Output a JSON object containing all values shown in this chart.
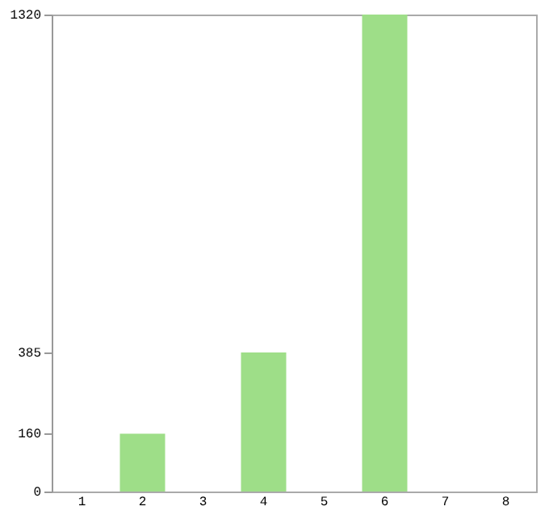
{
  "chart_data": {
    "type": "bar",
    "categories": [
      "1",
      "2",
      "3",
      "4",
      "5",
      "6",
      "7",
      "8"
    ],
    "values": [
      0,
      160,
      0,
      385,
      0,
      1320,
      0,
      0
    ],
    "color": "#9ede88",
    "ylim": [
      0,
      1320
    ],
    "yticks": [
      0,
      160,
      385,
      1320
    ],
    "grid": false
  }
}
